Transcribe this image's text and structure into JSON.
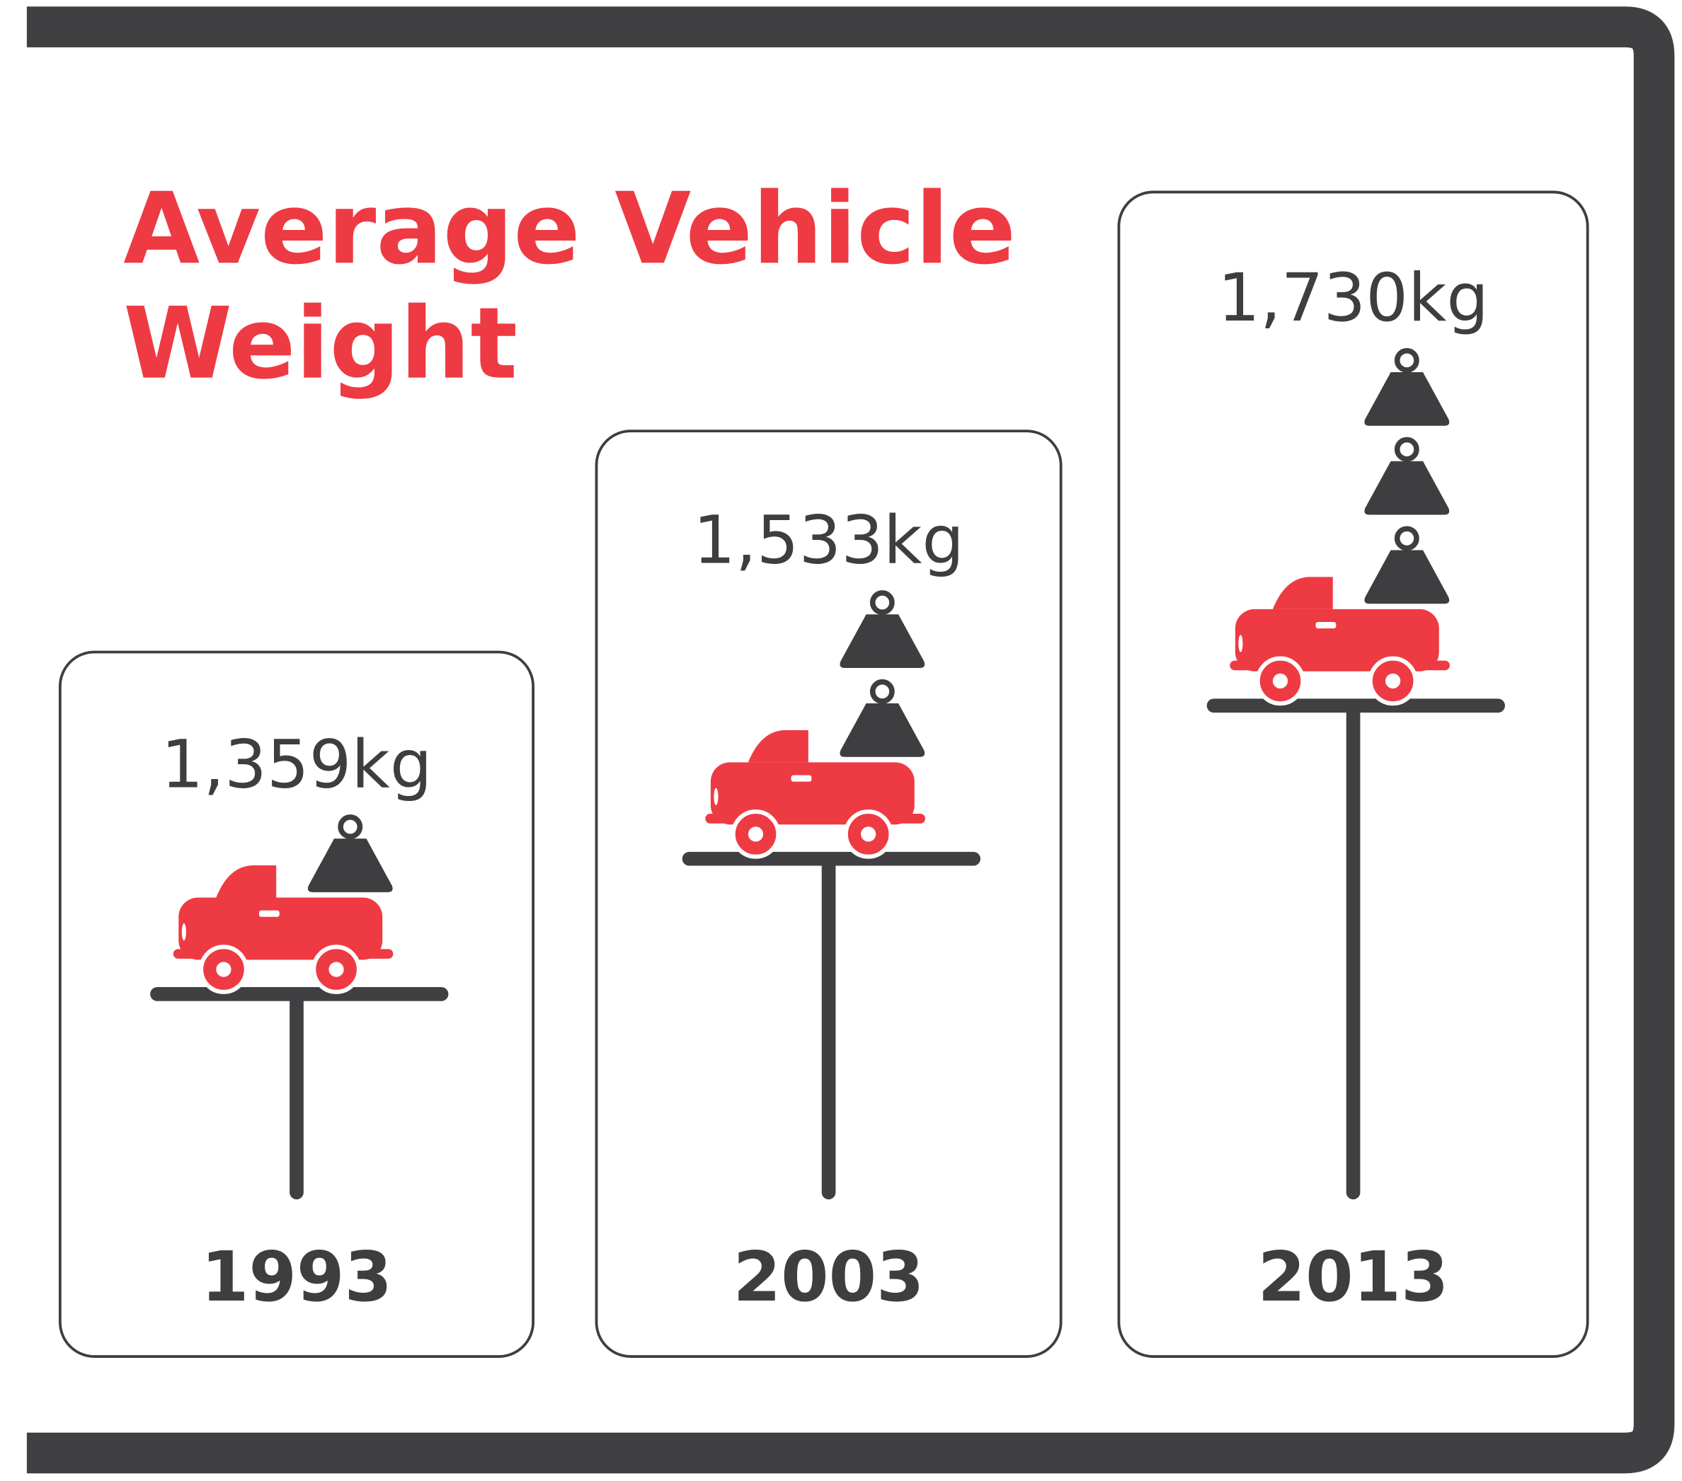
{
  "chart_data": {
    "type": "pictorial",
    "title": "Average Vehicle Weight",
    "categories": [
      "1993",
      "2003",
      "2013"
    ],
    "values": [
      1359,
      1533,
      1730
    ],
    "value_labels": [
      "1,359kg",
      "1,533kg",
      "1,730kg"
    ],
    "color": "#ee3a43"
  }
}
